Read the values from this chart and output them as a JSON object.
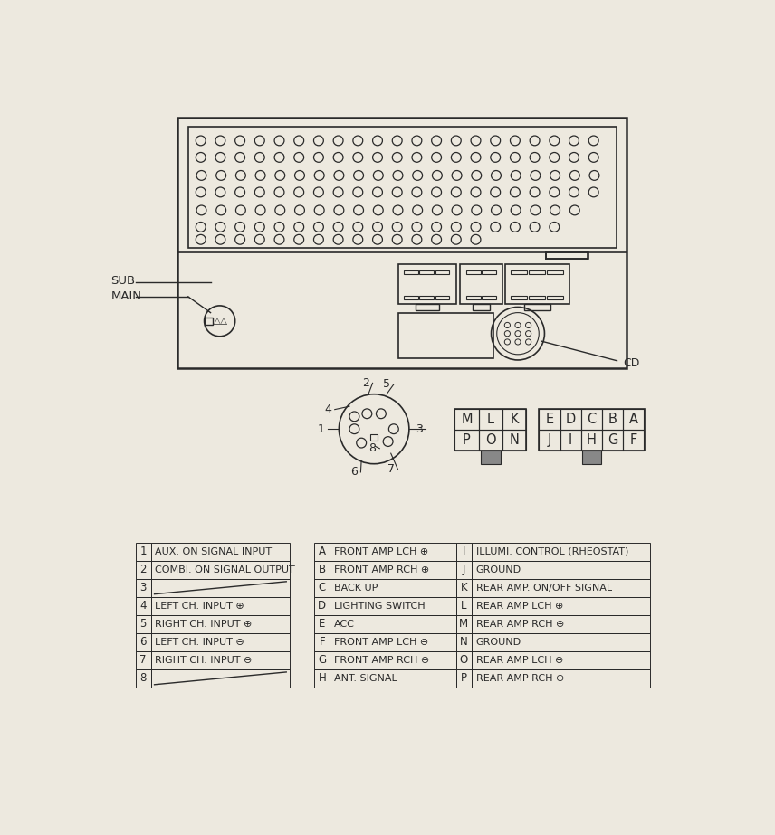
{
  "bg_color": "#ede9df",
  "line_color": "#2a2a2a",
  "table1_rows": [
    [
      "1",
      "AUX. ON SIGNAL INPUT"
    ],
    [
      "2",
      "COMBI. ON SIGNAL OUTPUT"
    ],
    [
      "3",
      ""
    ],
    [
      "4",
      "LEFT CH. INPUT ⊕"
    ],
    [
      "5",
      "RIGHT CH. INPUT ⊕"
    ],
    [
      "6",
      "LEFT CH. INPUT ⊖"
    ],
    [
      "7",
      "RIGHT CH. INPUT ⊖"
    ],
    [
      "8",
      ""
    ]
  ],
  "table2_rows": [
    [
      "A",
      "FRONT AMP LCH ⊕"
    ],
    [
      "B",
      "FRONT AMP RCH ⊕"
    ],
    [
      "C",
      "BACK UP"
    ],
    [
      "D",
      "LIGHTING SWITCH"
    ],
    [
      "E",
      "ACC"
    ],
    [
      "F",
      "FRONT AMP LCH ⊖"
    ],
    [
      "G",
      "FRONT AMP RCH ⊖"
    ],
    [
      "H",
      "ANT. SIGNAL"
    ]
  ],
  "table3_rows": [
    [
      "I",
      "ILLUMI. CONTROL (RHEOSTAT)"
    ],
    [
      "J",
      "GROUND"
    ],
    [
      "K",
      "REAR AMP. ON/OFF SIGNAL"
    ],
    [
      "L",
      "REAR AMP LCH ⊕"
    ],
    [
      "M",
      "REAR AMP RCH ⊕"
    ],
    [
      "N",
      "GROUND"
    ],
    [
      "O",
      "REAR AMP LCH ⊖"
    ],
    [
      "P",
      "REAR AMP RCH ⊖"
    ]
  ],
  "grid1_labels": [
    [
      "P",
      "O",
      "N"
    ],
    [
      "M",
      "L",
      "K"
    ]
  ],
  "grid2_labels": [
    [
      "J",
      "I",
      "H",
      "G",
      "F"
    ],
    [
      "E",
      "D",
      "C",
      "B",
      "A"
    ]
  ]
}
